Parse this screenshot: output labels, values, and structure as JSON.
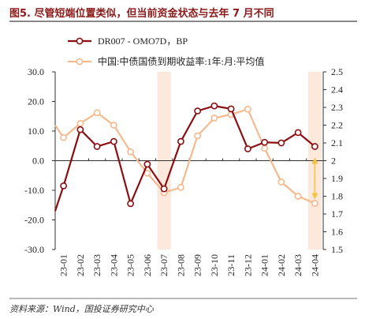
{
  "figure": {
    "title": "图5. 尽管短端位置类似，但当前资金状态与去年 7 月不同",
    "source": "资料来源：Wind，国投证券研究中心"
  },
  "colors": {
    "series1": "#8b0e12",
    "series2": "#f5b98e",
    "highlight": "#fde8dc",
    "arrow": "#f5c242",
    "title": "#8b1a1a"
  },
  "chart_data": {
    "type": "line",
    "categories": [
      "23-01",
      "23-02",
      "23-03",
      "23-04",
      "23-05",
      "23-06",
      "23-07",
      "23-08",
      "23-09",
      "23-10",
      "23-11",
      "23-12",
      "24-01",
      "24-02",
      "24-03",
      "24-04"
    ],
    "series": [
      {
        "name": "DR007 - OMO7D，BP",
        "axis": "left",
        "values": [
          -8.5,
          10.5,
          4.8,
          6.5,
          -14.5,
          -1.2,
          -9.5,
          6.5,
          16.8,
          18.5,
          17.5,
          4.0,
          6.2,
          6.0,
          9.5,
          4.8
        ],
        "start_value": -17.0
      },
      {
        "name": "中国:中债国债到期收益率:1年:月:平均值",
        "axis": "right",
        "values": [
          2.13,
          2.21,
          2.27,
          2.2,
          2.05,
          1.93,
          1.82,
          1.85,
          2.14,
          2.24,
          2.26,
          2.29,
          2.07,
          1.88,
          1.8,
          1.76
        ],
        "start_value": 2.2
      }
    ],
    "y_left": {
      "min": -30,
      "max": 30,
      "ticks": [
        "30.0",
        "20.0",
        "10.0",
        "0.0",
        "-10.0",
        "-20.0",
        "-30.0"
      ]
    },
    "y_right": {
      "min": 1.5,
      "max": 2.5,
      "ticks": [
        "2.5",
        "2.4",
        "2.3",
        "2.2",
        "2.1",
        "2",
        "1.9",
        "1.8",
        "1.7",
        "1.6",
        "1.5"
      ]
    },
    "highlight_categories": [
      "23-07",
      "24-04"
    ],
    "annotation": "double-headed arrow at 24-04 between 2 and 1.8 on right axis",
    "grid": false,
    "legend_position": "top-left"
  }
}
